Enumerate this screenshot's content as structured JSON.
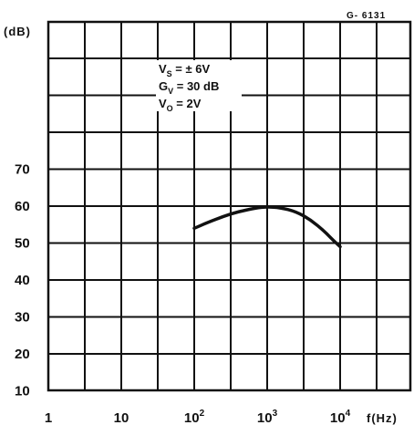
{
  "chart_data": {
    "type": "line",
    "figure_code": "G- 6131",
    "ylabel": "(dB)",
    "xlabel": "f(Hz)",
    "x_scale": "log",
    "xlim": [
      1,
      100000
    ],
    "ylim": [
      0,
      80
    ],
    "grid": true,
    "y_ticks": [
      {
        "value": 10,
        "label": "10"
      },
      {
        "value": 20,
        "label": "20"
      },
      {
        "value": 30,
        "label": "30"
      },
      {
        "value": 40,
        "label": "40"
      },
      {
        "value": 50,
        "label": "50"
      },
      {
        "value": 60,
        "label": "60"
      },
      {
        "value": 70,
        "label": "70"
      }
    ],
    "x_ticks": [
      {
        "value": 1,
        "base": "1",
        "exp": ""
      },
      {
        "value": 10,
        "base": "10",
        "exp": ""
      },
      {
        "value": 100,
        "base": "10",
        "exp": "2"
      },
      {
        "value": 1000,
        "base": "10",
        "exp": "3"
      },
      {
        "value": 10000,
        "base": "10",
        "exp": "4"
      }
    ],
    "conditions": [
      {
        "main": "V",
        "sub": "S",
        "rest": " = ± 6V"
      },
      {
        "main": "G",
        "sub": "V",
        "rest": " = 30 dB"
      },
      {
        "main": "V",
        "sub": "O",
        "rest": " = 2V"
      }
    ],
    "series": [
      {
        "x": [
          100,
          150,
          250,
          400,
          700,
          1000,
          1500,
          2500,
          4000,
          6000,
          8000,
          10000
        ],
        "y": [
          54,
          55.5,
          57.2,
          58.5,
          59.5,
          59.8,
          59.6,
          58.5,
          56.2,
          53.3,
          50.8,
          49
        ]
      }
    ],
    "baseline": {
      "x": [
        10000,
        100000
      ],
      "y": 50
    }
  }
}
